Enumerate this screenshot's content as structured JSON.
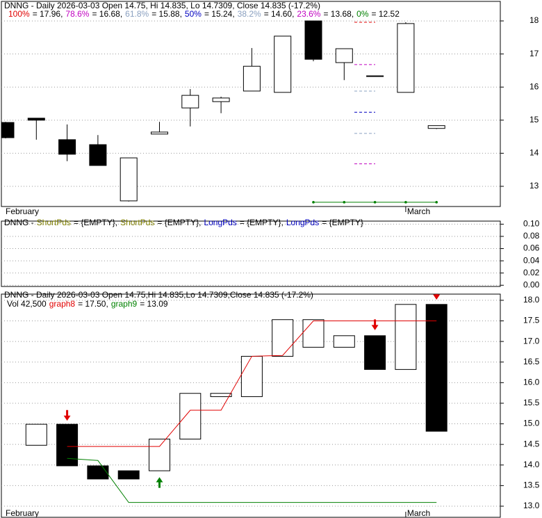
{
  "chart_data": [
    {
      "type": "candlestick",
      "title": "DNNG - Daily 2026-03-03 Open 14.75, Hi 14.835, Lo 14.7309, Close 14.835 (-17.2%)",
      "fib_levels": [
        {
          "label": "100%",
          "value": 17.96,
          "value_label": "= 17.96,",
          "color": "#e00000"
        },
        {
          "label": "78.6%",
          "value": 16.68,
          "value_label": "= 16.68,",
          "color": "#c000c0"
        },
        {
          "label": "61.8%",
          "value": 15.88,
          "value_label": "= 15.88,",
          "color": "#8aa0c0"
        },
        {
          "label": "50%",
          "value": 15.24,
          "value_label": "= 15.24,",
          "color": "#0000c0"
        },
        {
          "label": "38.2%",
          "value": 14.6,
          "value_label": "= 14.60,",
          "color": "#8aa0c0"
        },
        {
          "label": "23.6%",
          "value": 13.68,
          "value_label": "= 13.68,",
          "color": "#c000c0"
        },
        {
          "label": "0%",
          "value": 12.52,
          "value_label": "= 12.52",
          "color": "#008000"
        }
      ],
      "categories": [
        "February",
        null,
        null,
        null,
        null,
        null,
        null,
        null,
        null,
        null,
        null,
        null,
        null,
        "March",
        null
      ],
      "open": [
        14.93,
        15.06,
        14.41,
        14.26,
        12.56,
        14.58,
        15.37,
        15.56,
        15.88,
        15.84,
        18.0,
        16.74,
        16.34,
        15.84,
        14.75
      ],
      "high": [
        14.95,
        15.06,
        14.87,
        14.55,
        13.86,
        14.95,
        15.94,
        15.71,
        17.18,
        17.54,
        18.0,
        17.16,
        16.34,
        17.96,
        14.835
      ],
      "low": [
        14.45,
        14.41,
        13.76,
        13.63,
        12.54,
        14.58,
        14.81,
        15.21,
        15.88,
        15.84,
        16.78,
        16.21,
        16.34,
        15.84,
        14.7309
      ],
      "close": [
        14.47,
        15.0,
        13.97,
        13.63,
        13.86,
        14.64,
        15.75,
        15.67,
        16.63,
        17.54,
        16.84,
        17.16,
        16.34,
        17.92,
        14.835
      ],
      "up_color": "#ffffff",
      "down_color": "#000000",
      "ylim": [
        12.39,
        18.59
      ],
      "yticks": [
        13,
        14,
        15,
        16,
        17,
        18
      ],
      "grid": true
    },
    {
      "type": "indicator",
      "title": "DNNG -",
      "indicators": [
        {
          "name": "ShortPds",
          "color": "#808000",
          "value_label": "= {EMPTY},"
        },
        {
          "name": "ShortPds",
          "color": "#808000",
          "value_label": "= {EMPTY},"
        },
        {
          "name": "LongPds",
          "color": "#0000c0",
          "value_label": "= {EMPTY},"
        },
        {
          "name": "LongPds",
          "color": "#0000c0",
          "value_label": "= {EMPTY}"
        }
      ],
      "ylim": [
        -0.002,
        0.105
      ],
      "yticks": [
        {
          "value": 0,
          "label": "0.00"
        },
        {
          "value": 0.02,
          "label": "0.02"
        },
        {
          "value": 0.04,
          "label": "0.04"
        },
        {
          "value": 0.06,
          "label": "0.06"
        },
        {
          "value": 0.08,
          "label": "0.08"
        },
        {
          "value": 0.1,
          "label": "0.10"
        }
      ],
      "grid": true
    },
    {
      "type": "box",
      "title": "DNNG - Daily 2026-03-03 Open 14.75,Hi 14.835,Lo 14.7309,Close 14.835 (-17.2%)",
      "volume_label": "Vol 42,500",
      "categories": [
        "February",
        null,
        null,
        null,
        null,
        null,
        null,
        null,
        null,
        null,
        null,
        null,
        null,
        "March",
        null
      ],
      "open": [
        null,
        14.48,
        14.99,
        13.98,
        13.86,
        13.86,
        14.63,
        15.66,
        15.66,
        16.64,
        16.86,
        16.86,
        17.14,
        16.32,
        17.9
      ],
      "close": [
        null,
        14.99,
        13.98,
        13.66,
        13.66,
        14.63,
        15.74,
        15.74,
        16.64,
        17.53,
        17.53,
        17.14,
        16.32,
        17.9,
        14.82
      ],
      "up_color": "#ffffff",
      "down_color": "#000000",
      "lines": [
        {
          "name": "graph8",
          "color": "#e00000",
          "value_label": "= 17.50,",
          "values": [
            null,
            null,
            14.45,
            14.45,
            14.45,
            14.45,
            15.33,
            15.33,
            16.64,
            16.66,
            17.5,
            17.5,
            17.5,
            17.5,
            17.5
          ]
        },
        {
          "name": "graph9",
          "color": "#008000",
          "value_label": "= 13.09",
          "values": [
            null,
            null,
            14.16,
            14.11,
            13.09,
            13.09,
            13.09,
            13.09,
            13.09,
            13.09,
            13.09,
            13.09,
            13.09,
            13.09,
            13.09
          ]
        }
      ],
      "sell_signals": [
        null,
        null,
        15.09,
        null,
        null,
        null,
        null,
        null,
        null,
        null,
        null,
        null,
        17.29,
        null,
        18.03
      ],
      "buy_signals": [
        null,
        null,
        null,
        null,
        null,
        13.69,
        null,
        null,
        null,
        null,
        null,
        null,
        null,
        null,
        null
      ],
      "sell_color": "#e00000",
      "buy_color": "#008000",
      "ylim": [
        12.73,
        18.15
      ],
      "yticks": [
        {
          "value": 13,
          "label": "13.0"
        },
        13.5,
        {
          "value": 14,
          "label": "14.0"
        },
        14.5,
        {
          "value": 15,
          "label": "15.0"
        },
        15.5,
        {
          "value": 16,
          "label": "16.0"
        },
        16.5,
        {
          "value": 17,
          "label": "17.0"
        },
        17.5,
        {
          "value": 18,
          "label": "18.0"
        }
      ],
      "grid": true
    }
  ]
}
